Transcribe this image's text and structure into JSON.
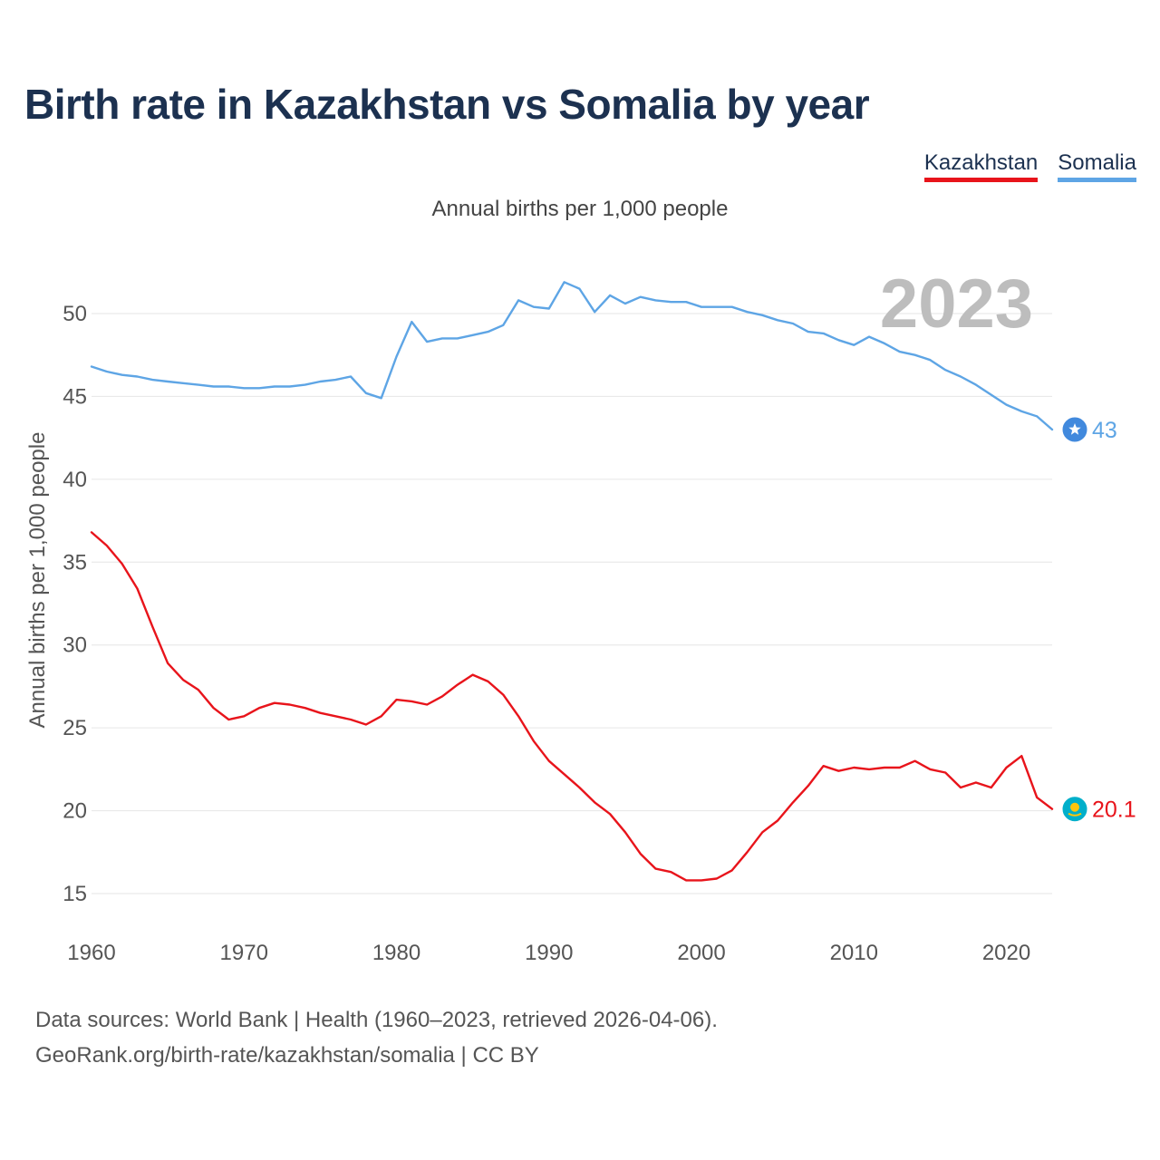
{
  "title": "Birth rate in Kazakhstan vs Somalia by year",
  "legend": {
    "kazakhstan": "Kazakhstan",
    "somalia": "Somalia"
  },
  "subtitle": "Annual births per 1,000 people",
  "footer": {
    "line1": "Data sources: World Bank | Health (1960–2023, retrieved 2026-04-06).",
    "line2": "GeoRank.org/birth-rate/kazakhstan/somalia | CC BY"
  },
  "chart_data": {
    "type": "line",
    "title": "Birth rate in Kazakhstan vs Somalia by year",
    "xlabel": "",
    "ylabel": "Annual births per 1,000 people",
    "xlim": [
      1960,
      2023
    ],
    "ylim": [
      15,
      53
    ],
    "x_ticks": [
      1960,
      1970,
      1980,
      1990,
      2000,
      2010,
      2020
    ],
    "y_ticks": [
      15,
      20,
      25,
      30,
      35,
      40,
      45,
      50
    ],
    "grid": true,
    "current_year_label": "2023",
    "x": [
      1960,
      1961,
      1962,
      1963,
      1964,
      1965,
      1966,
      1967,
      1968,
      1969,
      1970,
      1971,
      1972,
      1973,
      1974,
      1975,
      1976,
      1977,
      1978,
      1979,
      1980,
      1981,
      1982,
      1983,
      1984,
      1985,
      1986,
      1987,
      1988,
      1989,
      1990,
      1991,
      1992,
      1993,
      1994,
      1995,
      1996,
      1997,
      1998,
      1999,
      2000,
      2001,
      2002,
      2003,
      2004,
      2005,
      2006,
      2007,
      2008,
      2009,
      2010,
      2011,
      2012,
      2013,
      2014,
      2015,
      2016,
      2017,
      2018,
      2019,
      2020,
      2021,
      2022,
      2023
    ],
    "series": [
      {
        "name": "Kazakhstan",
        "color": "#e8141b",
        "end_label": "20.1",
        "values": [
          36.8,
          36.0,
          34.9,
          33.4,
          31.1,
          28.9,
          27.9,
          27.3,
          26.2,
          25.5,
          25.7,
          26.2,
          26.5,
          26.4,
          26.2,
          25.9,
          25.7,
          25.5,
          25.2,
          25.7,
          26.7,
          26.6,
          26.4,
          26.9,
          27.6,
          28.2,
          27.8,
          27.0,
          25.7,
          24.2,
          23.0,
          22.2,
          21.4,
          20.5,
          19.8,
          18.7,
          17.4,
          16.5,
          16.3,
          15.8,
          15.8,
          15.9,
          16.4,
          17.5,
          18.7,
          19.4,
          20.5,
          21.5,
          22.7,
          22.4,
          22.6,
          22.5,
          22.6,
          22.6,
          23.0,
          22.5,
          22.3,
          21.4,
          21.7,
          21.4,
          22.6,
          23.3,
          20.8,
          20.1
        ]
      },
      {
        "name": "Somalia",
        "color": "#5ea5e5",
        "end_label": "43",
        "values": [
          46.8,
          46.5,
          46.3,
          46.2,
          46.0,
          45.9,
          45.8,
          45.7,
          45.6,
          45.6,
          45.5,
          45.5,
          45.6,
          45.6,
          45.7,
          45.9,
          46.0,
          46.2,
          45.2,
          44.9,
          47.4,
          49.5,
          48.3,
          48.5,
          48.5,
          48.7,
          48.9,
          49.3,
          50.8,
          50.4,
          50.3,
          51.9,
          51.5,
          50.1,
          51.1,
          50.6,
          51.0,
          50.8,
          50.7,
          50.7,
          50.4,
          50.4,
          50.4,
          50.1,
          49.9,
          49.6,
          49.4,
          48.9,
          48.8,
          48.4,
          48.1,
          48.6,
          48.2,
          47.7,
          47.5,
          47.2,
          46.6,
          46.2,
          45.7,
          45.1,
          44.5,
          44.1,
          43.8,
          43.0
        ]
      }
    ]
  }
}
